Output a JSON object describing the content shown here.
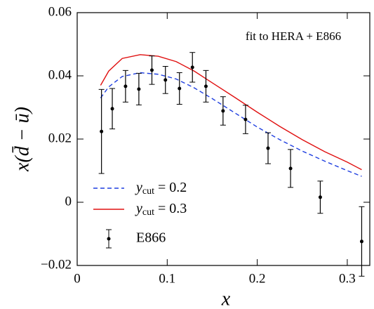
{
  "chart_data": {
    "type": "line",
    "annotation": "fit to HERA + E866",
    "xlabel": "x",
    "ylabel": "x(d̄ − ū)",
    "xlim": [
      0,
      0.325
    ],
    "ylim": [
      -0.02,
      0.06
    ],
    "xticks": [
      0,
      0.1,
      0.2,
      0.3
    ],
    "yticks": [
      {
        "value": -0.02,
        "label": "−0.02"
      },
      0,
      0.02,
      0.04,
      0.06
    ],
    "series": [
      {
        "name": "ycut = 0.2",
        "color": "#1f3fe0",
        "dashed": true,
        "x": [
          0.026,
          0.035,
          0.05,
          0.07,
          0.09,
          0.11,
          0.13,
          0.15,
          0.175,
          0.2,
          0.225,
          0.25,
          0.275,
          0.3,
          0.316
        ],
        "values": [
          0.033,
          0.0365,
          0.0398,
          0.041,
          0.0405,
          0.039,
          0.0362,
          0.0328,
          0.0283,
          0.0238,
          0.0198,
          0.0162,
          0.013,
          0.01,
          0.0082
        ]
      },
      {
        "name": "ycut = 0.3",
        "color": "#e01010",
        "dashed": false,
        "x": [
          0.026,
          0.035,
          0.05,
          0.07,
          0.09,
          0.11,
          0.13,
          0.15,
          0.175,
          0.2,
          0.225,
          0.25,
          0.275,
          0.3,
          0.316
        ],
        "values": [
          0.037,
          0.0415,
          0.0455,
          0.0467,
          0.0462,
          0.0445,
          0.0415,
          0.0378,
          0.0332,
          0.0285,
          0.024,
          0.0198,
          0.016,
          0.0127,
          0.0103
        ]
      },
      {
        "name": "E866",
        "color": "#000000",
        "x": [
          0.027,
          0.039,
          0.0537,
          0.0685,
          0.083,
          0.098,
          0.1136,
          0.128,
          0.143,
          0.162,
          0.187,
          0.212,
          0.237,
          0.27,
          0.316
        ],
        "values": [
          0.0224,
          0.0296,
          0.0367,
          0.0358,
          0.0418,
          0.0387,
          0.036,
          0.0427,
          0.0367,
          0.0289,
          0.0262,
          0.0171,
          0.0107,
          0.0016,
          -0.0124
        ],
        "errors": [
          0.0133,
          0.0064,
          0.005,
          0.005,
          0.0045,
          0.0043,
          0.005,
          0.0047,
          0.005,
          0.0045,
          0.0045,
          0.0049,
          0.006,
          0.0051,
          0.011
        ]
      }
    ]
  }
}
